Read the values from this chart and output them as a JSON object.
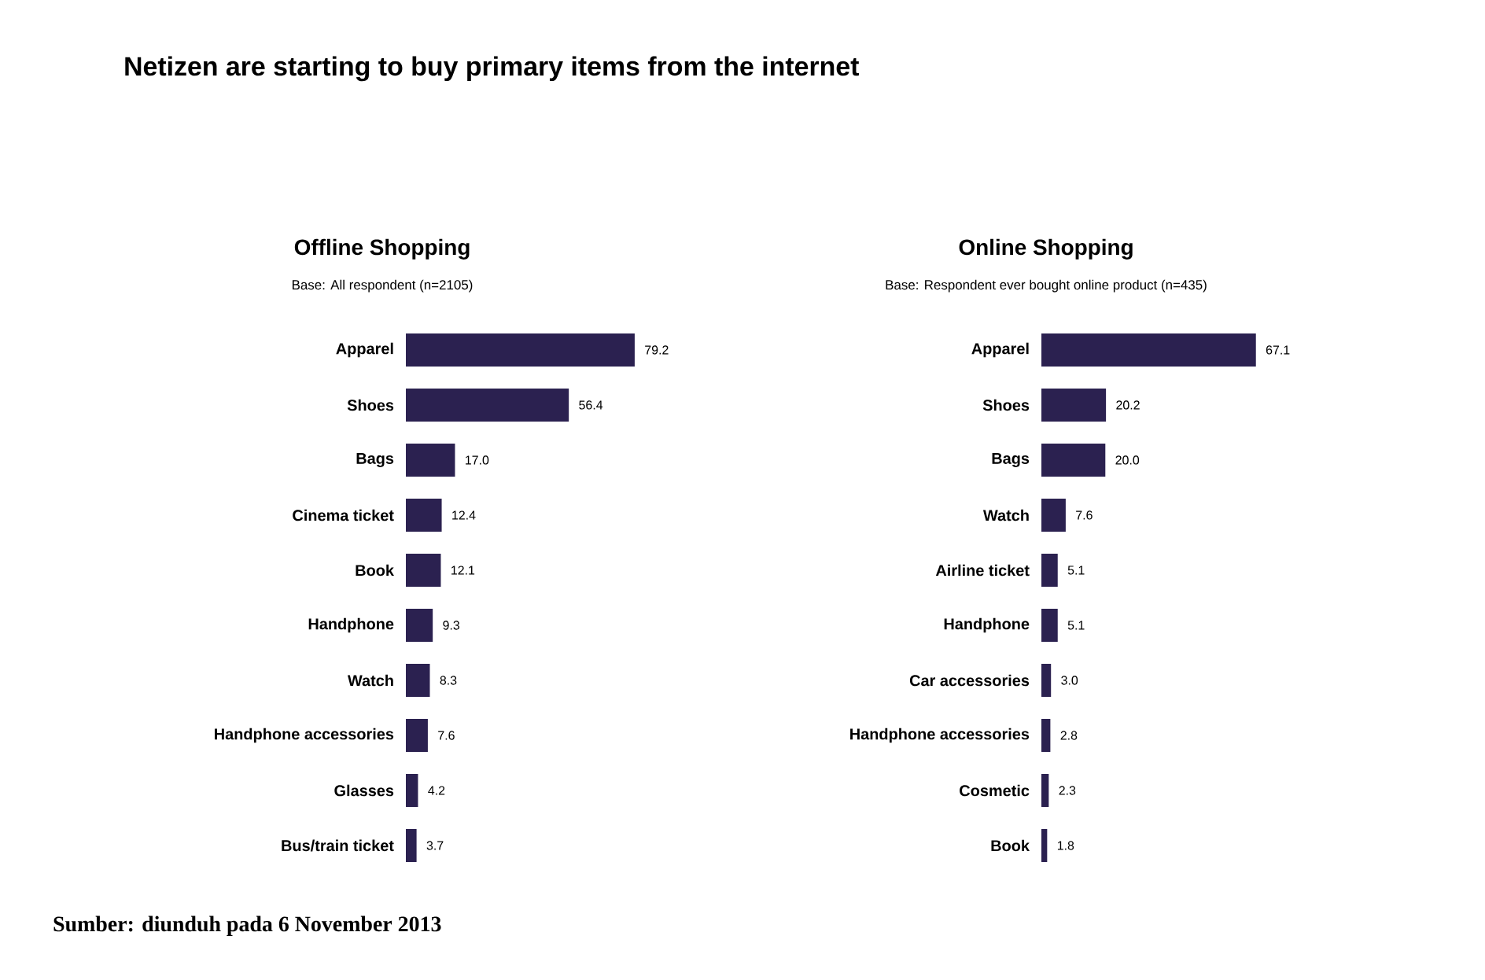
{
  "chart_data": [
    {
      "type": "bar",
      "orientation": "horizontal",
      "title": "Offline Shopping",
      "subtitle": "Base: All respondent (n=2105)",
      "categories": [
        "Apparel",
        "Shoes",
        "Bags",
        "Cinema ticket",
        "Book",
        "Handphone",
        "Watch",
        "Handphone accessories",
        "Glasses",
        "Bus/train ticket"
      ],
      "values": [
        79.2,
        56.4,
        17.0,
        12.4,
        12.1,
        9.3,
        8.3,
        7.6,
        4.2,
        3.7
      ],
      "value_labels": [
        "79.2",
        "56.4",
        "17.0",
        "12.4",
        "12.1",
        "9.3",
        "8.3",
        "7.6",
        "4.2",
        "3.7"
      ],
      "color": "#2b2150",
      "tick_labels": "y",
      "annotations": [
        "Netizen are starting to buy primary items from the internet"
      ]
    },
    {
      "type": "bar",
      "orientation": "horizontal",
      "title": "Online Shopping",
      "subtitle": "Base: Respondent ever bought online product (n=435)",
      "categories": [
        "Apparel",
        "Shoes",
        "Bags",
        "Watch",
        "Airline ticket",
        "Handphone",
        "Car accessories",
        "Handphone accessories",
        "Cosmetic",
        "Book"
      ],
      "values": [
        67.1,
        20.2,
        20.0,
        7.6,
        5.1,
        5.1,
        3.0,
        2.8,
        2.3,
        1.8
      ],
      "value_labels": [
        "67.1",
        "20.2",
        "20.0",
        "7.6",
        "5.1",
        "5.1",
        "3.0",
        "2.8",
        "2.3",
        "1.8"
      ],
      "color": "#2b2150",
      "tick_labels": "y",
      "annotations": [
        "Sumber: diunduh pada 6 November 2013"
      ]
    }
  ]
}
